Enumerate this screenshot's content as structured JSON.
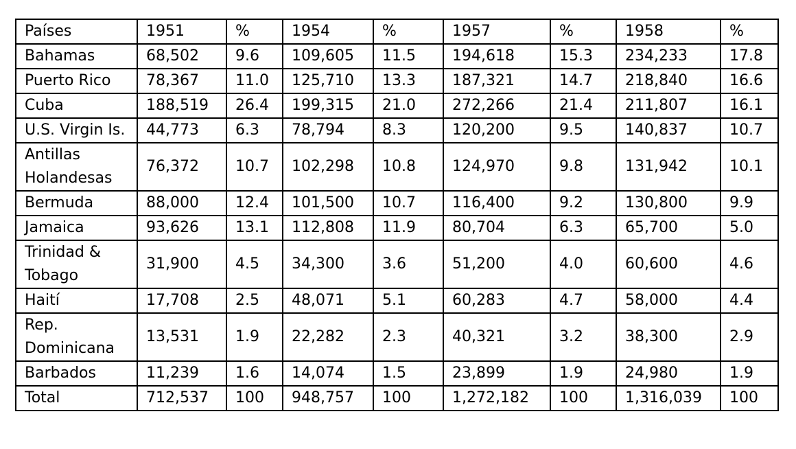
{
  "table": {
    "header": [
      "Países",
      "1951",
      "%",
      "1954",
      "%",
      "1957",
      "%",
      "1958",
      "%"
    ],
    "rows": [
      [
        "Bahamas",
        "68,502",
        "9.6",
        "109,605",
        "11.5",
        "194,618",
        "15.3",
        "234,233",
        "17.8"
      ],
      [
        "Puerto Rico",
        "78,367",
        "11.0",
        "125,710",
        "13.3",
        "187,321",
        "14.7",
        "218,840",
        "16.6"
      ],
      [
        "Cuba",
        "188,519",
        "26.4",
        "199,315",
        "21.0",
        "272,266",
        "21.4",
        "211,807",
        "16.1"
      ],
      [
        "U.S. Virgin Is.",
        "44,773",
        "6.3",
        "78,794",
        "8.3",
        "120,200",
        "9.5",
        "140,837",
        "10.7"
      ],
      [
        "Antillas Holandesas",
        "76,372",
        "10.7",
        "102,298",
        "10.8",
        "124,970",
        "9.8",
        "131,942",
        "10.1"
      ],
      [
        "Bermuda",
        "88,000",
        "12.4",
        "101,500",
        "10.7",
        "116,400",
        "9.2",
        "130,800",
        "9.9"
      ],
      [
        "Jamaica",
        "93,626",
        "13.1",
        "112,808",
        "11.9",
        "80,704",
        "6.3",
        "65,700",
        "5.0"
      ],
      [
        "Trinidad & Tobago",
        "31,900",
        "4.5",
        "34,300",
        "3.6",
        "51,200",
        "4.0",
        "60,600",
        "4.6"
      ],
      [
        "Haití",
        "17,708",
        "2.5",
        "48,071",
        "5.1",
        "60,283",
        "4.7",
        "58,000",
        "4.4"
      ],
      [
        "Rep. Dominicana",
        "13,531",
        "1.9",
        "22,282",
        "2.3",
        "40,321",
        "3.2",
        "38,300",
        "2.9"
      ],
      [
        "Barbados",
        "11,239",
        "1.6",
        "14,074",
        "1.5",
        "23,899",
        "1.9",
        "24,980",
        "1.9"
      ],
      [
        "Total",
        "712,537",
        "100",
        "948,757",
        "100",
        "1,272,182",
        "100",
        "1,316,039",
        "100"
      ]
    ]
  }
}
